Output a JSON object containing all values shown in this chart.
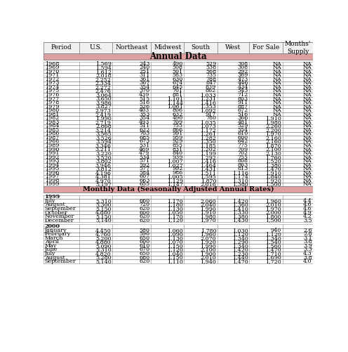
{
  "headers": [
    "Period",
    "U.S.",
    "Northeast",
    "Midwest",
    "South",
    "West",
    "For Sale",
    "Months'\nSupply"
  ],
  "annual_section_label": "Annual Data",
  "annual_data": [
    [
      "1968",
      "1,569",
      "243",
      "490",
      "529",
      "308",
      "NA",
      "NA"
    ],
    [
      "1969",
      "1,594",
      "240",
      "508",
      "538",
      "308",
      "NA",
      "NA"
    ],
    [
      "1970",
      "1,612",
      "251",
      "501",
      "568",
      "292",
      "NA",
      "NA"
    ],
    [
      "1971",
      "2,018",
      "311",
      "583",
      "735",
      "389",
      "NA",
      "NA"
    ],
    [
      "1972",
      "2,252",
      "361",
      "630",
      "788",
      "473",
      "NA",
      "NA"
    ],
    [
      "1973",
      "2,334",
      "367",
      "674",
      "847",
      "446",
      "NA",
      "NA"
    ],
    [
      "1974",
      "2,272",
      "354",
      "645",
      "839",
      "434",
      "NA",
      "NA"
    ],
    [
      "1975",
      "2,476",
      "370",
      "701",
      "862",
      "543",
      "NA",
      "NA"
    ],
    [
      "1976",
      "3,064",
      "439",
      "881",
      "1,033",
      "712",
      "NA",
      "NA"
    ],
    [
      "1977",
      "3,650",
      "515",
      "1,101",
      "1,231",
      "803",
      "NA",
      "NA"
    ],
    [
      "1978",
      "3,986",
      "516",
      "1,144",
      "1,416",
      "911",
      "NA",
      "NA"
    ],
    [
      "1979",
      "3,827",
      "526",
      "1,061",
      "1,353",
      "887",
      "NA",
      "NA"
    ],
    [
      "1980",
      "2,973",
      "403",
      "806",
      "1,092",
      "672",
      "NA",
      "NA"
    ],
    [
      "1981",
      "2,419",
      "353",
      "632",
      "917",
      "516",
      "NA",
      "NA"
    ],
    [
      "1982",
      "1,990",
      "354",
      "490",
      "780",
      "366",
      "1,910",
      "NA"
    ],
    [
      "1983",
      "2,719",
      "493",
      "709",
      "1,035",
      "481",
      "1,980",
      "NA"
    ],
    [
      "1984",
      "2,868",
      "511",
      "755",
      "1,073",
      "529",
      "2,260",
      "NA"
    ],
    [
      "1985",
      "3,214",
      "622",
      "866",
      "1,172",
      "554",
      "2,200",
      "NA"
    ],
    [
      "1986",
      "3,565",
      "703",
      "991",
      "1,261",
      "610",
      "1,970",
      "NA"
    ],
    [
      "1987",
      "3,526",
      "685",
      "959",
      "1,282",
      "600",
      "2,160",
      "NA"
    ],
    [
      "1988",
      "3,594",
      "673",
      "929",
      "1,350",
      "642",
      "2,160",
      "NA"
    ],
    [
      "1989",
      "3,346",
      "531",
      "855",
      "1,185",
      "775",
      "1,870",
      "NA"
    ],
    [
      "1990",
      "3,211",
      "469",
      "831",
      "1,202",
      "709",
      "2,100",
      "NA"
    ],
    [
      "1991",
      "3,220",
      "479",
      "840",
      "1,199",
      "702",
      "2,130",
      "NA"
    ],
    [
      "1992",
      "3,520",
      "534",
      "939",
      "1,292",
      "755",
      "1,760",
      "NA"
    ],
    [
      "1993",
      "3,802",
      "571",
      "1,007",
      "1,416",
      "808",
      "1,520",
      "NA"
    ],
    [
      "1994",
      "3,946",
      "592",
      "1,027",
      "1,464",
      "863",
      "1,380",
      "NA"
    ],
    [
      "1995",
      "3,812",
      "577",
      "992",
      "1,431",
      "813",
      "1,470",
      "NA"
    ],
    [
      "1996",
      "4,196",
      "584",
      "986",
      "1,511",
      "1,116",
      "1,910",
      "NA"
    ],
    [
      "1997",
      "4,381",
      "607",
      "1,005",
      "1,595",
      "1,174",
      "1,840",
      "NA"
    ],
    [
      "1998",
      "4,970",
      "663",
      "1,129",
      "1,870",
      "1,310",
      "1,920",
      "NA"
    ],
    [
      "1999",
      "5,197",
      "655",
      "1,147",
      "2,016",
      "1,380",
      "1,500",
      "NA"
    ]
  ],
  "monthly_section_label": "Monthly Data (Seasonally Adjusted Annual Rates)",
  "monthly_1999_label": "1999",
  "monthly_1999_data": [
    [
      "July",
      "5,310",
      "660",
      "1,170",
      "2,060",
      "1,420",
      "1,960",
      "4.4"
    ],
    [
      "August",
      "5,300",
      "720",
      "1,180",
      "2,040",
      "1,360",
      "2,010",
      "4.6"
    ],
    [
      "September",
      "5,150",
      "620",
      "1,130",
      "1,990",
      "1,410",
      "1,970",
      "4.6"
    ],
    [
      "October",
      "4,880",
      "600",
      "1,050",
      "1,910",
      "1,330",
      "2,000",
      "4.9"
    ],
    [
      "November",
      "5,150",
      "620",
      "1,170",
      "1,980",
      "1,380",
      "1,800",
      "4.2"
    ],
    [
      "December",
      "5,140",
      "620",
      "1,120",
      "1,970",
      "1,430",
      "1,500",
      "3.5"
    ]
  ],
  "monthly_2000_label": "2000",
  "monthly_2000_data": [
    [
      "January",
      "4,450",
      "580",
      "1,060",
      "1,780",
      "1,030",
      "940",
      "2.6"
    ],
    [
      "February",
      "4,760",
      "590",
      "1,090",
      "1,960",
      "1,120",
      "1,120",
      "2.8"
    ],
    [
      "March",
      "5,200",
      "650",
      "1,130",
      "2,070",
      "1,340",
      "1,340",
      "3.1"
    ],
    [
      "April",
      "4,880",
      "600",
      "1,070",
      "1,920",
      "1,290",
      "1,540",
      "3.8"
    ],
    [
      "May",
      "5,090",
      "610",
      "1,150",
      "1,990",
      "1,340",
      "1,560",
      "3.9"
    ],
    [
      "June",
      "5,310",
      "670",
      "1,120",
      "2,100",
      "1,420",
      "1,470",
      "3.3"
    ],
    [
      "July",
      "4,820",
      "650",
      "1,040",
      "1,900",
      "1,230",
      "1,710",
      "4.3"
    ],
    [
      "August",
      "5,280",
      "680",
      "1,150",
      "2,010",
      "1,440",
      "1,690",
      "3.8"
    ],
    [
      "September",
      "5,140",
      "620",
      "1,110",
      "1,940",
      "1,470",
      "1,720",
      "4.0"
    ]
  ],
  "header_bg": "#f0f0f0",
  "section_label_bg": "#dea0a0",
  "row_bg_white": "#ffffff",
  "border_color": "#888888",
  "font_size": 5.8,
  "header_font_size": 6.5
}
